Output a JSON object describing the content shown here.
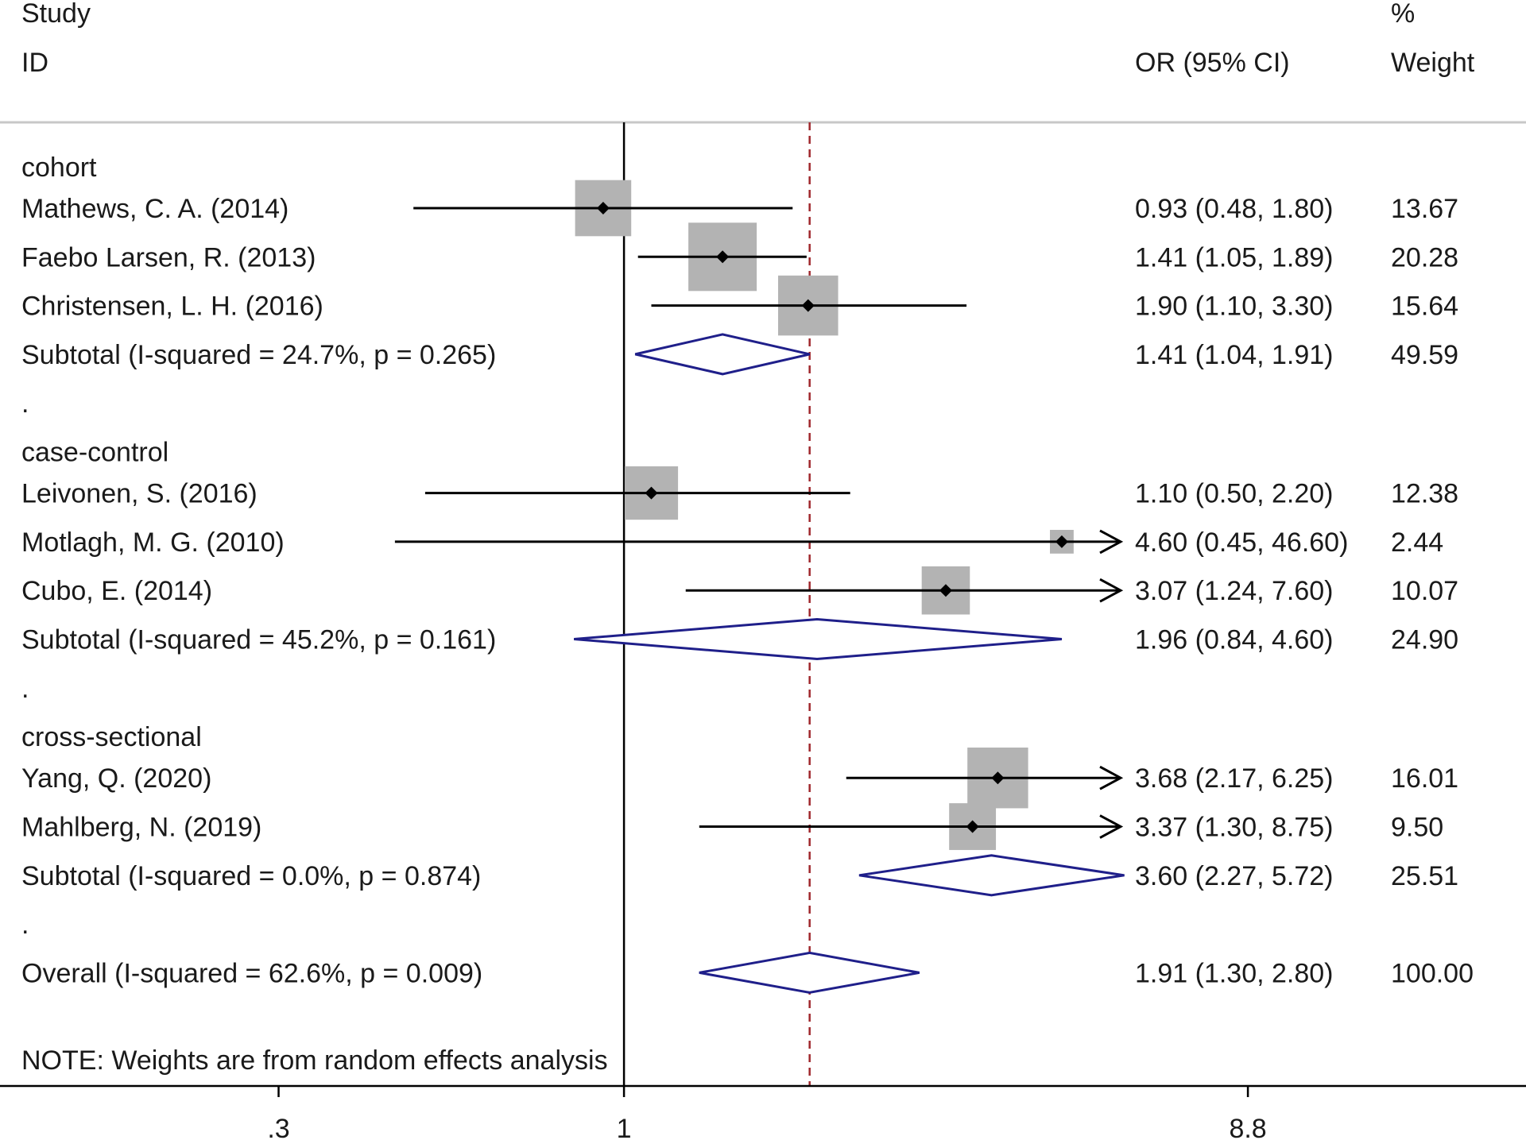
{
  "chart_data": {
    "type": "forest",
    "headers": {
      "study_line1": "Study",
      "study_line2": "ID",
      "ci_header": "OR (95% CI)",
      "weight_line1": "%",
      "weight_line2": "Weight"
    },
    "groups": [
      {
        "label": "cohort",
        "studies": [
          {
            "name": "Mathews, C. A. (2014)",
            "or": 0.93,
            "lo": 0.48,
            "hi": 1.8,
            "ci_text": "0.93 (0.48, 1.80)",
            "weight": "13.67"
          },
          {
            "name": "Faebo Larsen, R. (2013)",
            "or": 1.41,
            "lo": 1.05,
            "hi": 1.89,
            "ci_text": "1.41 (1.05, 1.89)",
            "weight": "20.28"
          },
          {
            "name": "Christensen, L. H. (2016)",
            "or": 1.9,
            "lo": 1.1,
            "hi": 3.3,
            "ci_text": "1.90 (1.10, 3.30)",
            "weight": "15.64"
          }
        ],
        "subtotal": {
          "label": "Subtotal  (I-squared = 24.7%, p = 0.265)",
          "or": 1.41,
          "lo": 1.04,
          "hi": 1.91,
          "ci_text": "1.41 (1.04, 1.91)",
          "weight": "49.59"
        }
      },
      {
        "label": "case-control",
        "studies": [
          {
            "name": "Leivonen, S. (2016)",
            "or": 1.1,
            "lo": 0.5,
            "hi": 2.2,
            "ci_text": "1.10 (0.50, 2.20)",
            "weight": "12.38"
          },
          {
            "name": "Motlagh, M. G. (2010)",
            "or": 4.6,
            "lo": 0.45,
            "hi": 46.6,
            "ci_text": "4.60 (0.45, 46.60)",
            "weight": "2.44"
          },
          {
            "name": "Cubo, E. (2014)",
            "or": 3.07,
            "lo": 1.24,
            "hi": 7.6,
            "ci_text": "3.07 (1.24, 7.60)",
            "weight": "10.07"
          }
        ],
        "subtotal": {
          "label": "Subtotal  (I-squared = 45.2%, p = 0.161)",
          "or": 1.96,
          "lo": 0.84,
          "hi": 4.6,
          "ci_text": "1.96 (0.84, 4.60)",
          "weight": "24.90"
        }
      },
      {
        "label": "cross-sectional",
        "studies": [
          {
            "name": "Yang, Q. (2020)",
            "or": 3.68,
            "lo": 2.17,
            "hi": 6.25,
            "ci_text": "3.68 (2.17, 6.25)",
            "weight": "16.01"
          },
          {
            "name": "Mahlberg, N. (2019)",
            "or": 3.37,
            "lo": 1.3,
            "hi": 8.75,
            "ci_text": "3.37 (1.30, 8.75)",
            "weight": "9.50"
          }
        ],
        "subtotal": {
          "label": "Subtotal  (I-squared = 0.0%, p = 0.874)",
          "or": 3.6,
          "lo": 2.27,
          "hi": 5.72,
          "ci_text": "3.60 (2.27, 5.72)",
          "weight": "25.51"
        }
      }
    ],
    "overall": {
      "label": "Overall  (I-squared = 62.6%, p = 0.009)",
      "or": 1.91,
      "lo": 1.3,
      "hi": 2.8,
      "ci_text": "1.91 (1.30, 2.80)",
      "weight": "100.00"
    },
    "separator": ".",
    "note": "NOTE: Weights are from random effects analysis",
    "x_scale": "log",
    "x_range": [
      0.1136,
      23.2
    ],
    "x_ticks": [
      {
        "value": 0.3,
        "label": ".3"
      },
      {
        "value": 1,
        "label": "1"
      },
      {
        "value": 8.8,
        "label": "8.8"
      }
    ],
    "null_line_value": 1,
    "overall_line_value": 1.91,
    "colors": {
      "text": "#1a1a1a",
      "ci_line": "#000000",
      "weight_box": "#b3b3b3",
      "diamond": "#1f1f8a",
      "overall_line": "#a0282d",
      "header_rule": "#c8c8c8"
    }
  }
}
